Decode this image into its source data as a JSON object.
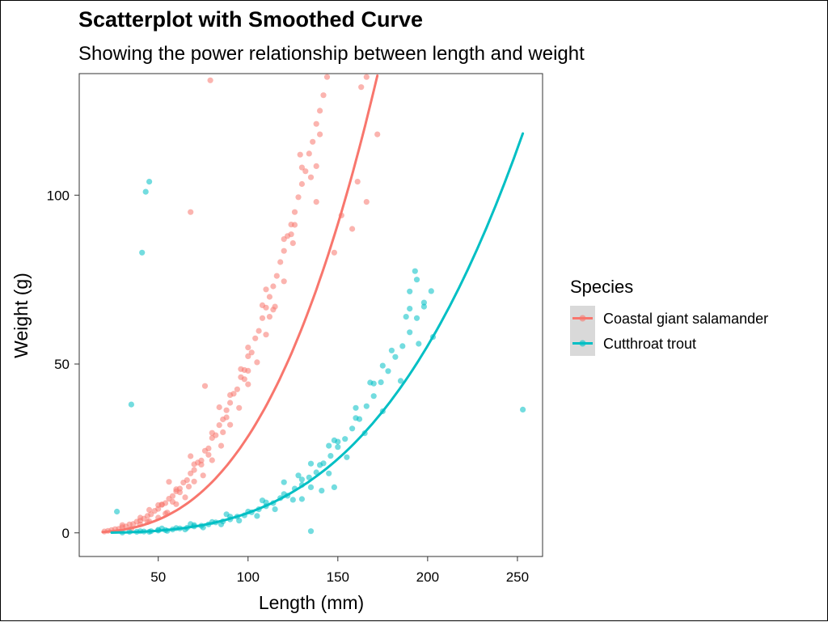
{
  "chart_data": {
    "type": "scatter",
    "title": "Scatterplot with Smoothed Curve",
    "subtitle": "Showing the power relationship between length and weight",
    "xlabel": "Length (mm)",
    "ylabel": "Weight (g)",
    "xlim": [
      6,
      264
    ],
    "ylim": [
      -7,
      136
    ],
    "xticks": [
      50,
      100,
      150,
      200,
      250
    ],
    "yticks": [
      0,
      50,
      100
    ],
    "grid": false,
    "legend": {
      "title": "Species",
      "placement": "right"
    },
    "series": [
      {
        "name": "Coastal giant salamander",
        "color": "#F8766D",
        "power_fit": {
          "a": 5.25e-05,
          "b": 2.868
        },
        "curve_x_range": [
          19,
          172
        ],
        "points": [
          [
            20,
            0.4
          ],
          [
            22,
            0.6
          ],
          [
            24,
            0.8
          ],
          [
            26,
            1.1
          ],
          [
            28,
            1.2
          ],
          [
            30,
            1.7
          ],
          [
            32,
            1.9
          ],
          [
            34,
            2.5
          ],
          [
            36,
            2.6
          ],
          [
            38,
            3.3
          ],
          [
            40,
            3.6
          ],
          [
            42,
            4.2
          ],
          [
            44,
            5.0
          ],
          [
            46,
            5.5
          ],
          [
            48,
            6.5
          ],
          [
            50,
            7.1
          ],
          [
            52,
            8.3
          ],
          [
            54,
            8.8
          ],
          [
            56,
            10.1
          ],
          [
            58,
            10.9
          ],
          [
            60,
            12.3
          ],
          [
            62,
            13.1
          ],
          [
            64,
            14.9
          ],
          [
            66,
            15.6
          ],
          [
            68,
            17.6
          ],
          [
            70,
            18.6
          ],
          [
            72,
            20.8
          ],
          [
            74,
            21.4
          ],
          [
            76,
            24.3
          ],
          [
            78,
            25.0
          ],
          [
            80,
            28.1
          ],
          [
            82,
            28.9
          ],
          [
            84,
            31.9
          ],
          [
            86,
            33.6
          ],
          [
            88,
            36.3
          ],
          [
            90,
            38.5
          ],
          [
            92,
            41.2
          ],
          [
            94,
            42.5
          ],
          [
            96,
            46.1
          ],
          [
            98,
            48.2
          ],
          [
            100,
            52.3
          ],
          [
            102,
            53.4
          ],
          [
            104,
            57.6
          ],
          [
            106,
            59.8
          ],
          [
            108,
            63.6
          ],
          [
            110,
            66.7
          ],
          [
            112,
            69.9
          ],
          [
            114,
            73.0
          ],
          [
            116,
            76.1
          ],
          [
            118,
            80.2
          ],
          [
            120,
            83.5
          ],
          [
            122,
            87.9
          ],
          [
            124,
            91.3
          ],
          [
            126,
            95.0
          ],
          [
            128,
            99.4
          ],
          [
            130,
            103.3
          ],
          [
            132,
            107.1
          ],
          [
            134,
            112.3
          ],
          [
            136,
            115.8
          ],
          [
            138,
            121.1
          ],
          [
            140,
            125.0
          ],
          [
            142,
            129.6
          ],
          [
            144,
            135.0
          ],
          [
            30,
            2.3
          ],
          [
            40,
            4.5
          ],
          [
            50,
            8.2
          ],
          [
            60,
            12.9
          ],
          [
            70,
            20.3
          ],
          [
            80,
            29.6
          ],
          [
            90,
            40.8
          ],
          [
            100,
            54.9
          ],
          [
            110,
            72.1
          ],
          [
            120,
            87.0
          ],
          [
            130,
            108.2
          ],
          [
            56,
            15.1
          ],
          [
            68,
            22.7
          ],
          [
            84,
            37.2
          ],
          [
            96,
            48.5
          ],
          [
            108,
            67.4
          ],
          [
            35,
            1.2
          ],
          [
            45,
            3.4
          ],
          [
            55,
            6.0
          ],
          [
            65,
            10.5
          ],
          [
            75,
            17.0
          ],
          [
            85,
            25.8
          ],
          [
            95,
            37.0
          ],
          [
            105,
            50.5
          ],
          [
            115,
            67.0
          ],
          [
            125,
            85.8
          ],
          [
            135,
            105.3
          ],
          [
            45,
            6.8
          ],
          [
            52,
            8.4
          ],
          [
            62,
            12.0
          ],
          [
            74,
            20.2
          ],
          [
            86,
            29.8
          ],
          [
            98,
            45.5
          ],
          [
            112,
            64.0
          ],
          [
            124,
            88.4
          ],
          [
            138,
            108.6
          ],
          [
            40,
            2.5
          ],
          [
            50,
            4.5
          ],
          [
            60,
            8.5
          ],
          [
            70,
            15.2
          ],
          [
            80,
            21.5
          ],
          [
            90,
            32.0
          ],
          [
            100,
            44.0
          ],
          [
            110,
            58.7
          ],
          [
            120,
            74.5
          ],
          [
            44,
            3.2
          ],
          [
            54,
            5.7
          ],
          [
            58,
            9.2
          ],
          [
            67,
            13.7
          ],
          [
            78,
            23.1
          ],
          [
            88,
            34.2
          ],
          [
            100,
            48.0
          ],
          [
            114,
            66.1
          ],
          [
            126,
            91.2
          ],
          [
            140,
            118.0
          ],
          [
            79,
            134
          ],
          [
            68,
            95
          ],
          [
            166,
            135
          ],
          [
            163,
            132
          ],
          [
            172,
            118
          ],
          [
            138,
            98
          ],
          [
            148,
            83
          ],
          [
            152,
            94
          ],
          [
            158,
            90
          ],
          [
            161,
            104
          ],
          [
            166,
            98
          ],
          [
            129,
            112
          ],
          [
            76,
            43.5
          ]
        ]
      },
      {
        "name": "Cutthroat trout",
        "color": "#00BFC4",
        "power_fit": {
          "a": 2.08e-06,
          "b": 3.227
        },
        "curve_x_range": [
          24,
          253
        ],
        "points": [
          [
            30,
            0.1
          ],
          [
            34,
            0.3
          ],
          [
            38,
            0.3
          ],
          [
            42,
            0.4
          ],
          [
            46,
            0.5
          ],
          [
            50,
            0.7
          ],
          [
            54,
            0.8
          ],
          [
            58,
            1.0
          ],
          [
            62,
            1.3
          ],
          [
            66,
            1.5
          ],
          [
            70,
            1.9
          ],
          [
            74,
            2.1
          ],
          [
            78,
            2.5
          ],
          [
            82,
            3.1
          ],
          [
            86,
            3.4
          ],
          [
            90,
            4.0
          ],
          [
            94,
            4.8
          ],
          [
            98,
            5.2
          ],
          [
            102,
            6.1
          ],
          [
            106,
            7.0
          ],
          [
            110,
            7.9
          ],
          [
            114,
            8.8
          ],
          [
            118,
            10.3
          ],
          [
            122,
            11.0
          ],
          [
            126,
            13.1
          ],
          [
            130,
            14.2
          ],
          [
            134,
            16.4
          ],
          [
            138,
            17.9
          ],
          [
            142,
            20.6
          ],
          [
            146,
            22.8
          ],
          [
            150,
            25.4
          ],
          [
            154,
            27.8
          ],
          [
            158,
            30.9
          ],
          [
            162,
            33.7
          ],
          [
            166,
            37.5
          ],
          [
            170,
            40.5
          ],
          [
            174,
            44.6
          ],
          [
            178,
            47.9
          ],
          [
            182,
            52.1
          ],
          [
            186,
            55.3
          ],
          [
            190,
            59.4
          ],
          [
            194,
            63.6
          ],
          [
            198,
            68.2
          ],
          [
            202,
            71.6
          ],
          [
            40,
            0.5
          ],
          [
            50,
            0.9
          ],
          [
            60,
            1.4
          ],
          [
            70,
            2.3
          ],
          [
            80,
            3.2
          ],
          [
            90,
            4.8
          ],
          [
            100,
            6.3
          ],
          [
            110,
            9.0
          ],
          [
            120,
            11.5
          ],
          [
            130,
            15.8
          ],
          [
            140,
            20.1
          ],
          [
            150,
            27.0
          ],
          [
            160,
            34.0
          ],
          [
            170,
            44.2
          ],
          [
            180,
            54.0
          ],
          [
            190,
            66.4
          ],
          [
            45,
            0.3
          ],
          [
            55,
            0.6
          ],
          [
            65,
            1.0
          ],
          [
            75,
            1.6
          ],
          [
            85,
            2.5
          ],
          [
            95,
            3.6
          ],
          [
            105,
            5.0
          ],
          [
            115,
            7.0
          ],
          [
            125,
            9.8
          ],
          [
            135,
            13.5
          ],
          [
            145,
            17.6
          ],
          [
            155,
            22.4
          ],
          [
            165,
            29.5
          ],
          [
            175,
            36.0
          ],
          [
            185,
            45.0
          ],
          [
            195,
            56.0
          ],
          [
            52,
            1.3
          ],
          [
            68,
            2.6
          ],
          [
            88,
            5.5
          ],
          [
            108,
            9.6
          ],
          [
            128,
            17.0
          ],
          [
            148,
            27.4
          ],
          [
            168,
            44.5
          ],
          [
            188,
            64.0
          ],
          [
            120,
            15.0
          ],
          [
            135,
            20.5
          ],
          [
            145,
            25.8
          ],
          [
            160,
            37.0
          ],
          [
            175,
            49.5
          ],
          [
            190,
            71.5
          ],
          [
            193,
            77.5
          ],
          [
            194,
            75
          ],
          [
            198,
            67
          ],
          [
            148,
            13.5
          ],
          [
            130,
            10.0
          ],
          [
            141,
            12.5
          ],
          [
            43,
            101
          ],
          [
            45,
            104
          ],
          [
            41,
            83
          ],
          [
            35,
            38
          ],
          [
            253,
            36.5
          ],
          [
            135,
            0.5
          ],
          [
            27,
            6.3
          ],
          [
            203,
            58.0
          ]
        ]
      }
    ]
  }
}
